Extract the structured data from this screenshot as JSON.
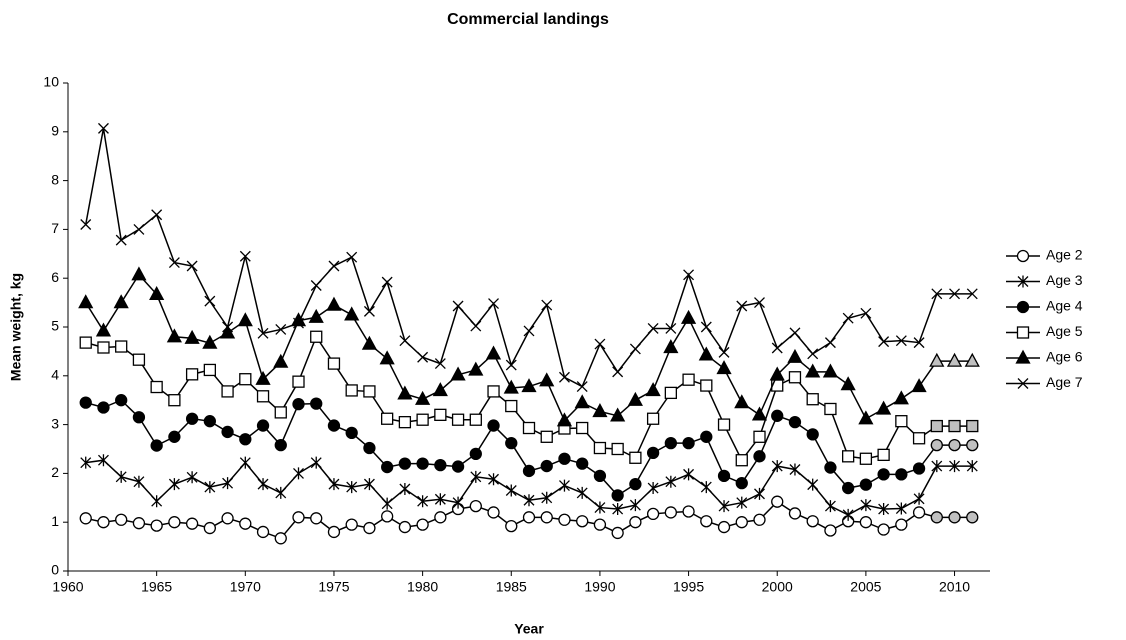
{
  "chart_data": {
    "type": "line",
    "title": "Commercial landings",
    "x_label": "Year",
    "y_label": "Mean weight, kg",
    "x": [
      1961,
      1962,
      1963,
      1964,
      1965,
      1966,
      1967,
      1968,
      1969,
      1970,
      1971,
      1972,
      1973,
      1974,
      1975,
      1976,
      1977,
      1978,
      1979,
      1980,
      1981,
      1982,
      1983,
      1984,
      1985,
      1986,
      1987,
      1988,
      1989,
      1990,
      1991,
      1992,
      1993,
      1994,
      1995,
      1996,
      1997,
      1998,
      1999,
      2000,
      2001,
      2002,
      2003,
      2004,
      2005,
      2006,
      2007,
      2008,
      2009,
      2010,
      2011
    ],
    "xlim": [
      1960,
      2012
    ],
    "xticks": [
      1960,
      1965,
      1970,
      1975,
      1980,
      1985,
      1990,
      1995,
      2000,
      2005,
      2010
    ],
    "ylim": [
      0,
      10
    ],
    "yticks": [
      0,
      1,
      2,
      3,
      4,
      5,
      6,
      7,
      8,
      9,
      10
    ],
    "grid": false,
    "legend": "right",
    "estimate_from": 2009,
    "estimate_fill": "#c0c0c0",
    "series": [
      {
        "name": "Age 2",
        "color": "#000000",
        "marker": "open-circle",
        "values": [
          1.08,
          1.0,
          1.05,
          0.98,
          0.93,
          1.0,
          0.97,
          0.88,
          1.08,
          0.97,
          0.8,
          0.67,
          1.1,
          1.08,
          0.8,
          0.95,
          0.88,
          1.12,
          0.9,
          0.95,
          1.1,
          1.27,
          1.33,
          1.2,
          0.92,
          1.1,
          1.1,
          1.05,
          1.02,
          0.95,
          0.78,
          1.0,
          1.17,
          1.2,
          1.22,
          1.02,
          0.9,
          1.0,
          1.05,
          1.42,
          1.18,
          1.02,
          0.83,
          1.02,
          1.0,
          0.85,
          0.95,
          1.2,
          1.1,
          1.1,
          1.1
        ]
      },
      {
        "name": "Age 3",
        "color": "#000000",
        "marker": "star",
        "values": [
          2.22,
          2.27,
          1.93,
          1.83,
          1.43,
          1.78,
          1.92,
          1.72,
          1.8,
          2.22,
          1.78,
          1.6,
          2.0,
          2.22,
          1.78,
          1.72,
          1.78,
          1.38,
          1.68,
          1.43,
          1.47,
          1.4,
          1.93,
          1.88,
          1.65,
          1.45,
          1.5,
          1.75,
          1.6,
          1.3,
          1.27,
          1.35,
          1.7,
          1.83,
          1.98,
          1.72,
          1.33,
          1.4,
          1.58,
          2.15,
          2.08,
          1.77,
          1.33,
          1.15,
          1.35,
          1.27,
          1.28,
          1.48,
          2.15,
          2.15,
          2.15
        ]
      },
      {
        "name": "Age 4",
        "color": "#000000",
        "marker": "filled-circle",
        "values": [
          3.45,
          3.35,
          3.5,
          3.15,
          2.57,
          2.75,
          3.12,
          3.07,
          2.85,
          2.7,
          2.98,
          2.58,
          3.42,
          3.43,
          2.98,
          2.83,
          2.52,
          2.13,
          2.2,
          2.2,
          2.17,
          2.14,
          2.4,
          2.98,
          2.62,
          2.05,
          2.15,
          2.3,
          2.2,
          1.95,
          1.55,
          1.78,
          2.42,
          2.62,
          2.62,
          2.75,
          1.95,
          1.8,
          2.35,
          3.18,
          3.05,
          2.8,
          2.12,
          1.7,
          1.77,
          1.98,
          1.98,
          2.1,
          2.58,
          2.58,
          2.58
        ]
      },
      {
        "name": "Age 5",
        "color": "#000000",
        "marker": "open-square",
        "values": [
          4.68,
          4.58,
          4.6,
          4.33,
          3.77,
          3.5,
          4.03,
          4.12,
          3.68,
          3.93,
          3.58,
          3.25,
          3.88,
          4.8,
          4.25,
          3.7,
          3.68,
          3.12,
          3.05,
          3.1,
          3.2,
          3.1,
          3.1,
          3.68,
          3.38,
          2.93,
          2.75,
          2.92,
          2.93,
          2.52,
          2.5,
          2.32,
          3.12,
          3.65,
          3.92,
          3.8,
          3.0,
          2.27,
          2.75,
          3.8,
          3.97,
          3.52,
          3.32,
          2.35,
          2.3,
          2.38,
          3.07,
          2.72,
          2.97,
          2.97,
          2.97
        ]
      },
      {
        "name": "Age 6",
        "color": "#000000",
        "marker": "filled-triangle",
        "values": [
          5.5,
          4.92,
          5.5,
          6.07,
          5.67,
          4.8,
          4.77,
          4.67,
          4.88,
          5.13,
          3.93,
          4.28,
          5.13,
          5.2,
          5.45,
          5.25,
          4.65,
          4.35,
          3.63,
          3.52,
          3.7,
          4.02,
          4.12,
          4.45,
          3.75,
          3.78,
          3.9,
          3.08,
          3.45,
          3.27,
          3.18,
          3.5,
          3.7,
          4.58,
          5.18,
          4.43,
          4.15,
          3.45,
          3.2,
          4.02,
          4.38,
          4.08,
          4.08,
          3.82,
          3.12,
          3.32,
          3.53,
          3.78,
          4.3,
          4.3,
          4.3
        ]
      },
      {
        "name": "Age 7",
        "color": "#000000",
        "marker": "cross",
        "values": [
          7.1,
          9.07,
          6.78,
          7.0,
          7.3,
          6.32,
          6.25,
          5.53,
          5.0,
          6.45,
          4.87,
          4.95,
          5.08,
          5.85,
          6.25,
          6.43,
          5.32,
          5.92,
          4.72,
          4.38,
          4.25,
          5.43,
          5.02,
          5.48,
          4.22,
          4.92,
          5.45,
          3.97,
          3.78,
          4.65,
          4.08,
          4.55,
          4.97,
          4.97,
          6.07,
          5.0,
          4.48,
          5.43,
          5.5,
          4.57,
          4.88,
          4.45,
          4.68,
          5.18,
          5.28,
          4.7,
          4.72,
          4.68,
          5.68,
          5.68,
          5.68
        ]
      }
    ]
  }
}
